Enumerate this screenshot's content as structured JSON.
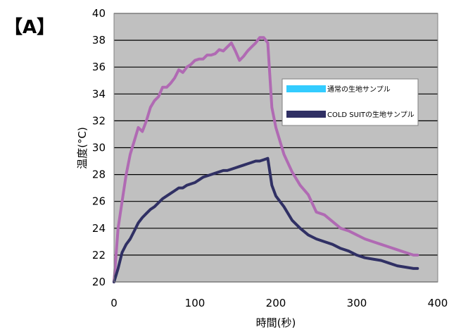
{
  "panel_label": "【A】",
  "chart_data": {
    "type": "line",
    "title": "",
    "xlabel": "時間(秒)",
    "ylabel": "温度(°C)",
    "xlim": [
      0,
      400
    ],
    "ylim": [
      20,
      40
    ],
    "x_ticks": [
      0,
      100,
      200,
      300,
      400
    ],
    "y_ticks": [
      20,
      22,
      24,
      26,
      28,
      30,
      32,
      34,
      36,
      38,
      40
    ],
    "grid": "horizontal",
    "plot_background": "#c0c0c0",
    "legend_position": "right",
    "series": [
      {
        "name": "通常の生地サンプル",
        "line_color": "#b06ab3",
        "legend_color": "#33ccff",
        "x": [
          0,
          5,
          10,
          15,
          20,
          25,
          30,
          35,
          40,
          45,
          50,
          55,
          60,
          65,
          70,
          75,
          80,
          85,
          90,
          95,
          100,
          105,
          110,
          115,
          120,
          125,
          130,
          135,
          140,
          145,
          150,
          155,
          160,
          165,
          170,
          175,
          180,
          185,
          190,
          195,
          200,
          210,
          220,
          230,
          240,
          250,
          260,
          270,
          280,
          290,
          300,
          310,
          320,
          330,
          340,
          350,
          360,
          370,
          375
        ],
        "y": [
          20.0,
          24.0,
          26.0,
          28.0,
          29.5,
          30.5,
          31.5,
          31.2,
          32.0,
          33.0,
          33.5,
          33.8,
          34.5,
          34.5,
          34.8,
          35.2,
          35.8,
          35.6,
          36.0,
          36.2,
          36.5,
          36.6,
          36.6,
          36.9,
          36.9,
          37.0,
          37.3,
          37.2,
          37.5,
          37.8,
          37.2,
          36.5,
          36.8,
          37.2,
          37.5,
          37.8,
          38.2,
          38.2,
          37.8,
          33.0,
          31.5,
          29.5,
          28.2,
          27.2,
          26.5,
          25.2,
          25.0,
          24.5,
          24.0,
          23.8,
          23.5,
          23.2,
          23.0,
          22.8,
          22.6,
          22.4,
          22.2,
          22.0,
          22.0
        ]
      },
      {
        "name": "COLD SUITの生地サンプル",
        "line_color": "#303064",
        "legend_color": "#303064",
        "x": [
          0,
          5,
          10,
          15,
          20,
          25,
          30,
          35,
          40,
          45,
          50,
          55,
          60,
          65,
          70,
          75,
          80,
          85,
          90,
          95,
          100,
          105,
          110,
          115,
          120,
          125,
          130,
          135,
          140,
          145,
          150,
          155,
          160,
          165,
          170,
          175,
          180,
          185,
          190,
          195,
          200,
          210,
          220,
          230,
          240,
          250,
          260,
          270,
          280,
          290,
          300,
          310,
          320,
          330,
          340,
          350,
          360,
          370,
          375
        ],
        "y": [
          20.0,
          21.0,
          22.2,
          22.8,
          23.2,
          23.8,
          24.4,
          24.8,
          25.1,
          25.4,
          25.6,
          25.9,
          26.2,
          26.4,
          26.6,
          26.8,
          27.0,
          27.0,
          27.2,
          27.3,
          27.4,
          27.6,
          27.8,
          27.9,
          28.0,
          28.1,
          28.2,
          28.3,
          28.3,
          28.4,
          28.5,
          28.6,
          28.7,
          28.8,
          28.9,
          29.0,
          29.0,
          29.1,
          29.2,
          27.2,
          26.4,
          25.6,
          24.6,
          24.0,
          23.5,
          23.2,
          23.0,
          22.8,
          22.5,
          22.3,
          22.0,
          21.8,
          21.7,
          21.6,
          21.4,
          21.2,
          21.1,
          21.0,
          21.0
        ]
      }
    ]
  }
}
